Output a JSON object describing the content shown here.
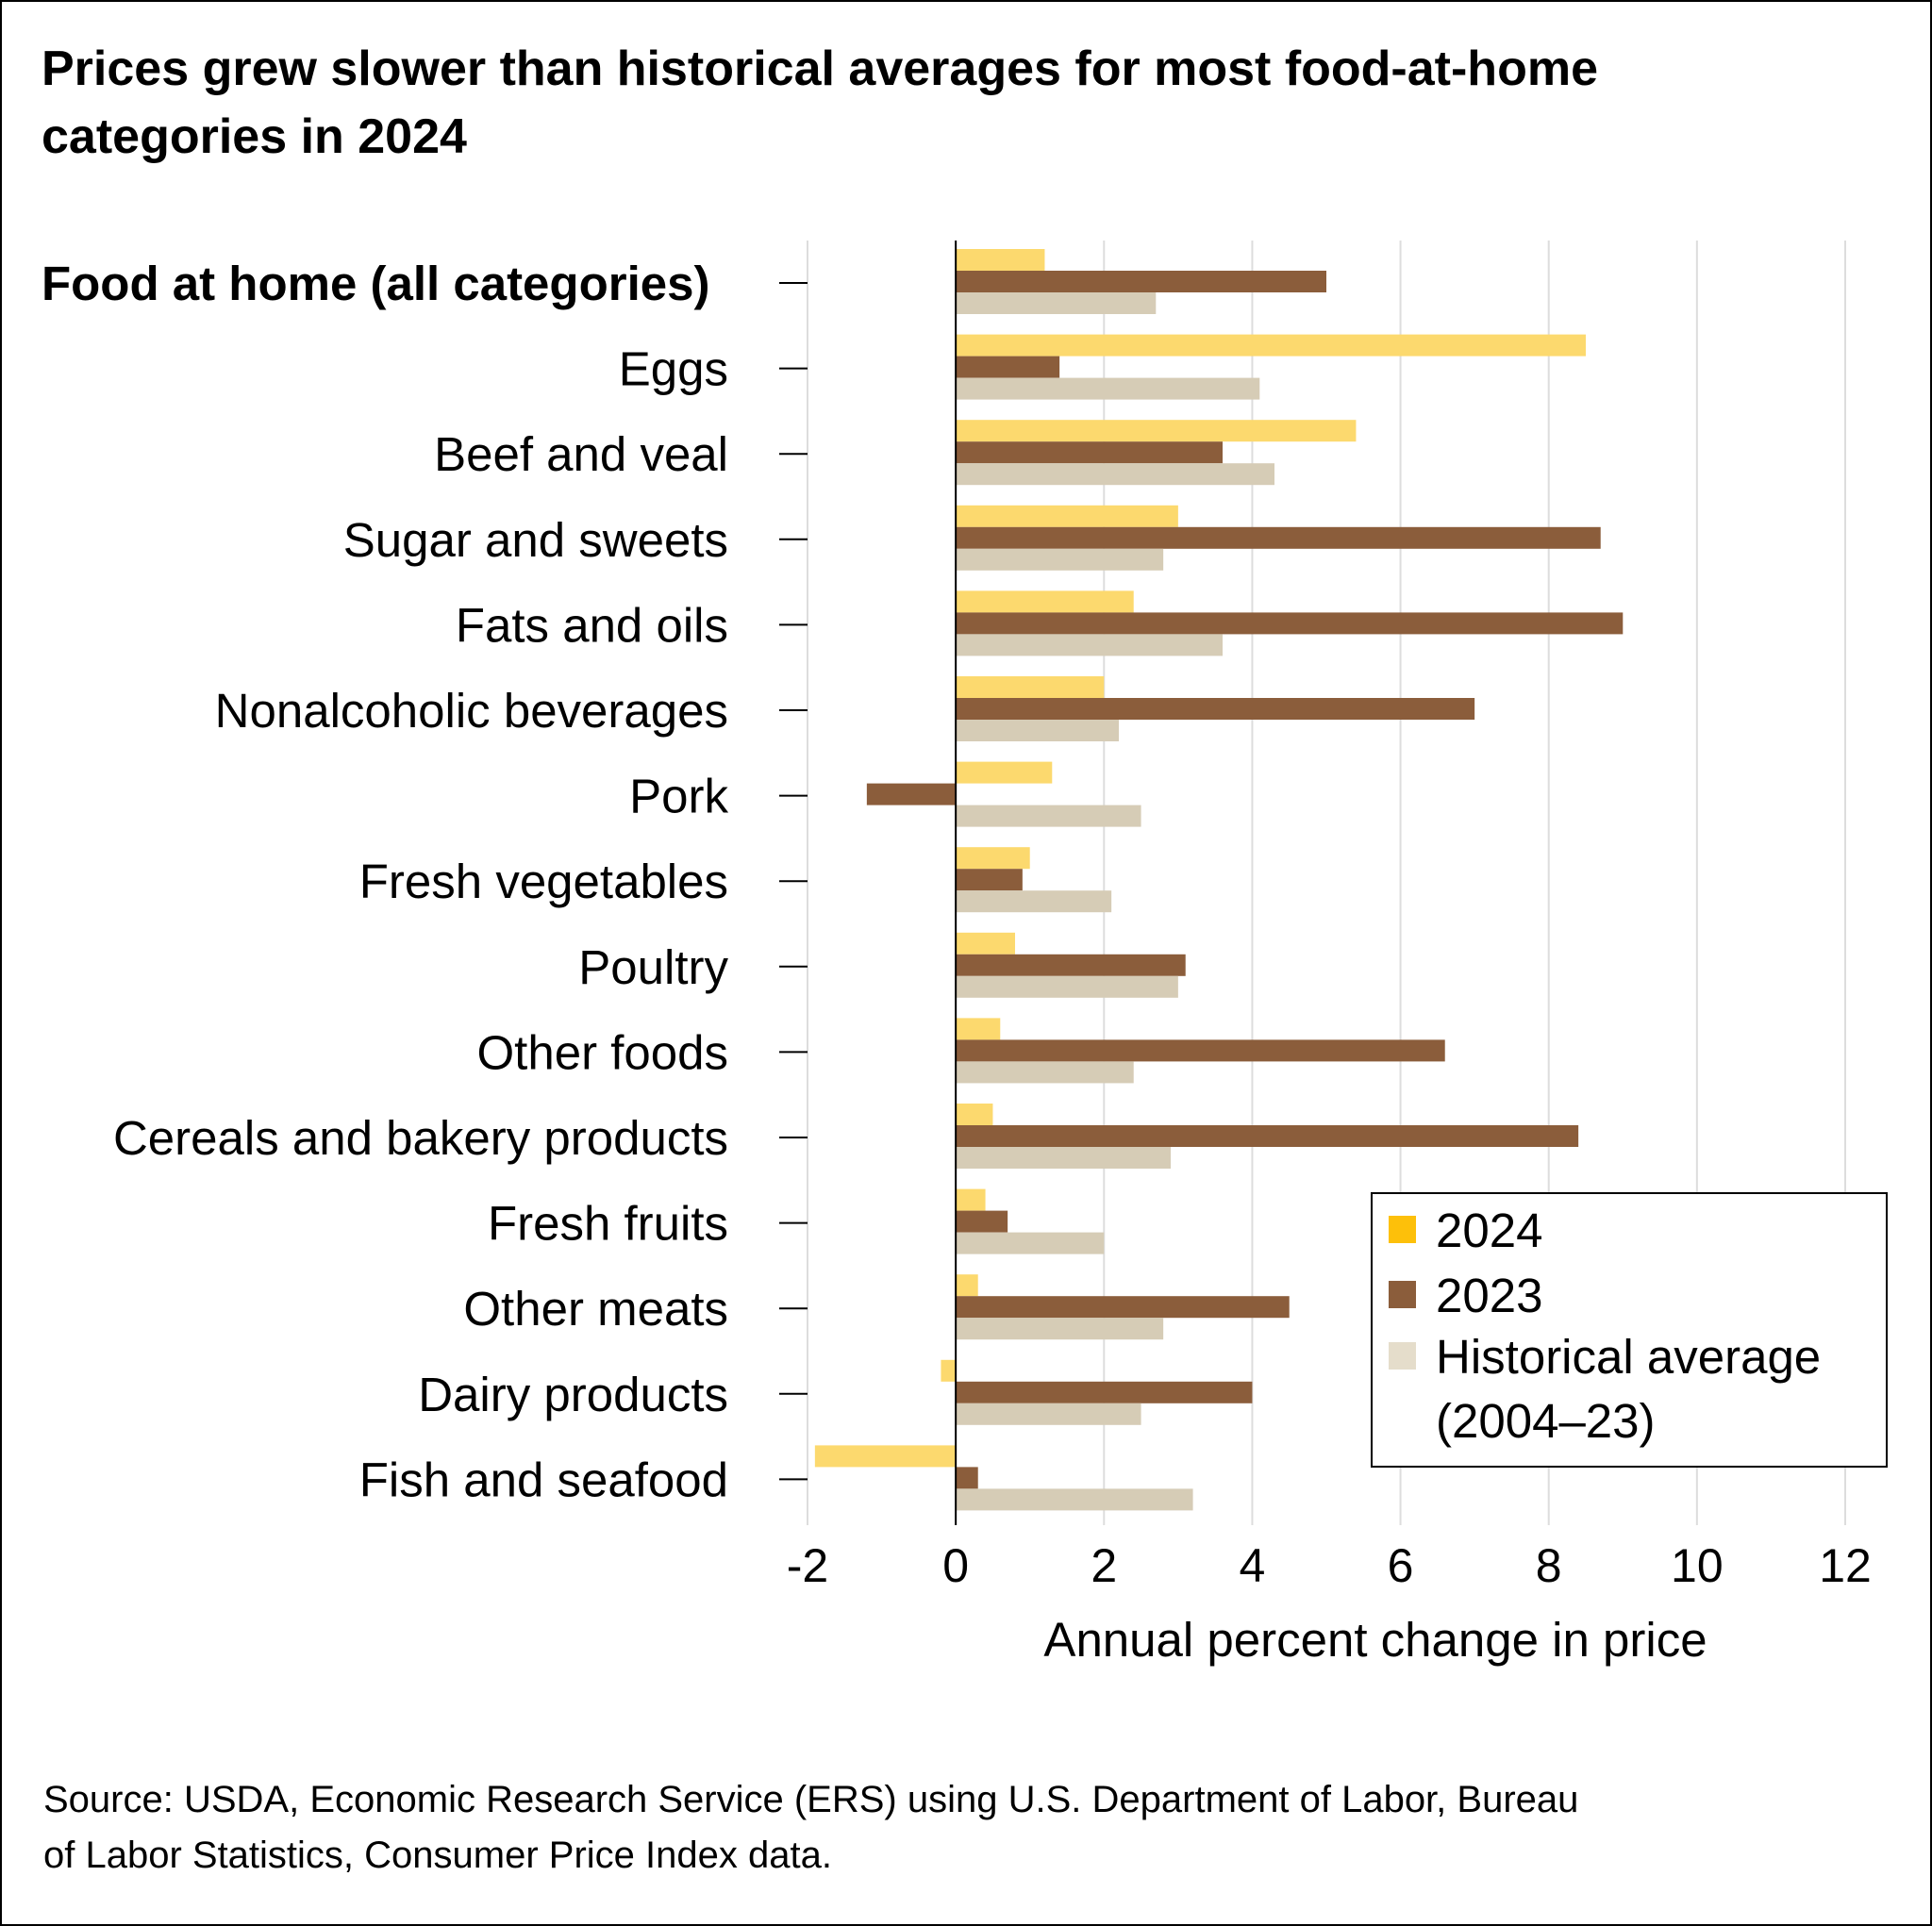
{
  "colors": {
    "series_2024": "#fcd96e",
    "series_2023": "#8b5d3b",
    "series_hist": "#d6ccb6",
    "legend_2024": "#fdc00a",
    "legend_hist": "#e5ddcb",
    "grid": "#dddddd",
    "axis": "#000000"
  },
  "chart_data": {
    "type": "bar",
    "orientation": "horizontal",
    "title_lines": [
      "Prices grew slower than historical averages for most food-at-home",
      "categories in 2024"
    ],
    "categories": [
      "Food at home (all categories)",
      "Eggs",
      "Beef and veal",
      "Sugar and sweets",
      "Fats and oils",
      "Nonalcoholic beverages",
      "Pork",
      "Fresh vegetables",
      "Poultry",
      "Other foods",
      "Cereals and bakery products",
      "Fresh fruits",
      "Other meats",
      "Dairy products",
      "Fish and seafood"
    ],
    "series": [
      {
        "name": "2024",
        "values": [
          1.2,
          8.5,
          5.4,
          3.0,
          2.4,
          2.0,
          1.3,
          1.0,
          0.8,
          0.6,
          0.5,
          0.4,
          0.3,
          -0.2,
          -1.9
        ]
      },
      {
        "name": "2023",
        "values": [
          5.0,
          1.4,
          3.6,
          8.7,
          9.0,
          7.0,
          -1.2,
          0.9,
          3.1,
          6.6,
          8.4,
          0.7,
          4.5,
          4.0,
          0.3
        ]
      },
      {
        "name": "Historical average (2004–23)",
        "values": [
          2.7,
          4.1,
          4.3,
          2.8,
          3.6,
          2.2,
          2.5,
          2.1,
          3.0,
          2.4,
          2.9,
          2.0,
          2.8,
          2.5,
          3.2
        ]
      }
    ],
    "xlabel": "Annual percent change in price",
    "xlim": [
      -2,
      12
    ],
    "xticks": [
      "-2",
      "0",
      "2",
      "4",
      "6",
      "8",
      "10",
      "12"
    ],
    "grid": true,
    "legend": {
      "placement": "bottom-right",
      "entries": [
        "2024",
        "2023",
        "Historical average",
        "(2004–23)"
      ]
    },
    "source_lines": [
      "Source: USDA, Economic Research Service (ERS) using U.S. Department of Labor, Bureau",
      "of Labor Statistics, Consumer Price Index data."
    ]
  }
}
